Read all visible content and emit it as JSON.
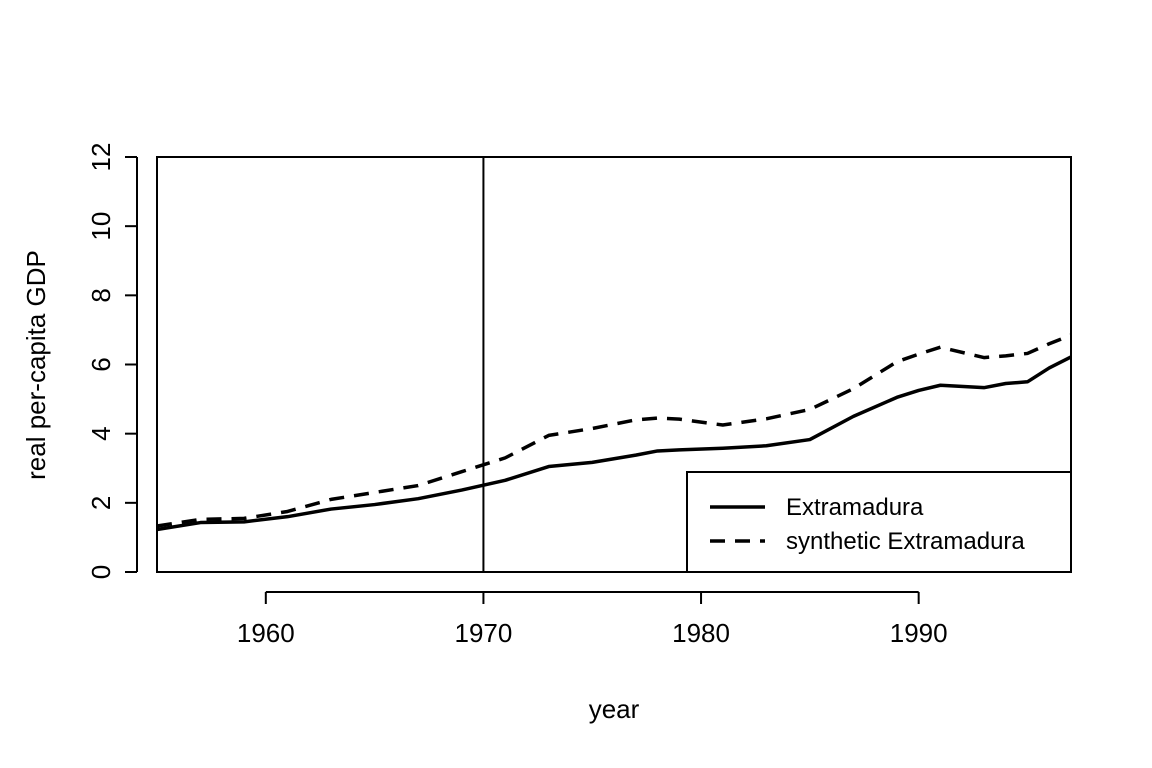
{
  "chart_data": {
    "type": "line",
    "title": "",
    "xlabel": "year",
    "ylabel": "real per-capita GDP",
    "xlim": [
      1955,
      1997
    ],
    "ylim": [
      0,
      12
    ],
    "x_ticks": [
      1960,
      1970,
      1980,
      1990
    ],
    "x_tick_labels": [
      "1960",
      "1970",
      "1980",
      "1990"
    ],
    "y_ticks": [
      0,
      2,
      4,
      6,
      8,
      10,
      12
    ],
    "y_tick_labels": [
      "0",
      "2",
      "4",
      "6",
      "8",
      "10",
      "12"
    ],
    "vertical_lines": [
      1955,
      1970
    ],
    "grid": false,
    "legend_position": "bottom-right",
    "x": [
      1955,
      1957,
      1959,
      1961,
      1963,
      1965,
      1967,
      1969,
      1971,
      1973,
      1975,
      1977,
      1978,
      1979,
      1981,
      1983,
      1985,
      1987,
      1989,
      1990,
      1991,
      1993,
      1994,
      1995,
      1996,
      1997
    ],
    "series": [
      {
        "name": "Extramadura",
        "line_style": "solid",
        "values": [
          1.23,
          1.43,
          1.45,
          1.6,
          1.82,
          1.95,
          2.12,
          2.37,
          2.65,
          3.05,
          3.17,
          3.38,
          3.5,
          3.53,
          3.58,
          3.65,
          3.83,
          4.5,
          5.05,
          5.25,
          5.4,
          5.33,
          5.45,
          5.5,
          5.9,
          6.22
        ]
      },
      {
        "name": "synthetic Extramadura",
        "line_style": "dashed",
        "values": [
          1.33,
          1.52,
          1.55,
          1.75,
          2.1,
          2.3,
          2.5,
          2.9,
          3.3,
          3.95,
          4.15,
          4.4,
          4.45,
          4.42,
          4.25,
          4.43,
          4.7,
          5.3,
          6.08,
          6.3,
          6.5,
          6.2,
          6.25,
          6.32,
          6.6,
          6.85
        ]
      }
    ]
  },
  "colors": {
    "line": "#000000",
    "background": "#ffffff"
  }
}
